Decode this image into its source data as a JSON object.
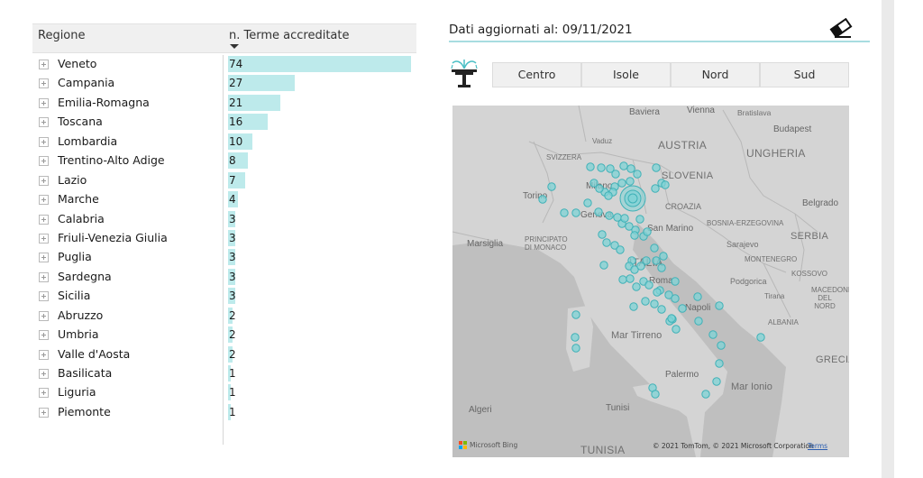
{
  "table": {
    "headers": {
      "region": "Regione",
      "value": "n. Terme accreditate"
    },
    "rows": [
      {
        "region": "Veneto",
        "count": "74",
        "value": 74
      },
      {
        "region": "Campania",
        "count": "27",
        "value": 27
      },
      {
        "region": "Emilia-Romagna",
        "count": "21",
        "value": 21
      },
      {
        "region": "Toscana",
        "count": "16",
        "value": 16
      },
      {
        "region": "Lombardia",
        "count": "10",
        "value": 10
      },
      {
        "region": "Trentino-Alto Adige",
        "count": "8",
        "value": 8
      },
      {
        "region": "Lazio",
        "count": "7",
        "value": 7
      },
      {
        "region": "Marche",
        "count": "4",
        "value": 4
      },
      {
        "region": "Calabria",
        "count": "3",
        "value": 3
      },
      {
        "region": "Friuli-Venezia Giulia",
        "count": "3",
        "value": 3
      },
      {
        "region": "Puglia",
        "count": "3",
        "value": 3
      },
      {
        "region": "Sardegna",
        "count": "3",
        "value": 3
      },
      {
        "region": "Sicilia",
        "count": "3",
        "value": 3
      },
      {
        "region": "Abruzzo",
        "count": "2",
        "value": 2
      },
      {
        "region": "Umbria",
        "count": "2",
        "value": 2
      },
      {
        "region": "Valle d'Aosta",
        "count": "2",
        "value": 2
      },
      {
        "region": "Basilicata",
        "count": "1",
        "value": 1
      },
      {
        "region": "Liguria",
        "count": "1",
        "value": 1
      },
      {
        "region": "Piemonte",
        "count": "1",
        "value": 1
      }
    ],
    "bar_color": "#bdeaeb"
  },
  "header": {
    "update_label": "Dati aggiornati al: 09/11/2021",
    "eraser_icon": "eraser-icon"
  },
  "slicer": {
    "icon": "fountain-icon",
    "options": [
      "Centro",
      "Isole",
      "Nord",
      "Sud"
    ]
  },
  "map": {
    "labels": {
      "baviera": "Baviera",
      "vienna": "Vienna",
      "bratislava": "Bratislava",
      "budapest": "Budapest",
      "austria": "AUSTRIA",
      "vaduz": "Vaduz",
      "ungheria": "UNGHERIA",
      "svizzera": "SVIZZERA",
      "slovenia": "SLOVENIA",
      "torino": "Torino",
      "milano": "Milano",
      "genova": "Genova",
      "croazia": "CROAZIA",
      "belgrado": "Belgrado",
      "bosnia": "BOSNIA-ERZEGOVINA",
      "marsiglia": "Marsiglia",
      "monaco": "PRINCIPATO DI MONACO",
      "sanmarino": "San Marino",
      "sarajevo": "Sarajevo",
      "serbia": "SERBIA",
      "italia": "ITALIA",
      "montenegro": "MONTENEGRO",
      "kosovo": "KOSSOVO",
      "podgorica": "Podgorica",
      "roma": "Roma",
      "tirana": "Tirana",
      "macedonia": "MACEDONIA DEL NORD",
      "napoli": "Napoli",
      "albania": "ALBANIA",
      "tirreno": "Mar Tirreno",
      "grecia": "GRECIA",
      "palermo": "Palermo",
      "ionio": "Mar Ionio",
      "algeri": "Algeri",
      "tunisi": "Tunisi",
      "tunisia": "TUNISIA"
    },
    "marker_color": "#7fd3d6",
    "bing_text": "Microsoft Bing",
    "copyright": "© 2021 TomTom, © 2021 Microsoft Corporation",
    "terms": "Terms"
  }
}
